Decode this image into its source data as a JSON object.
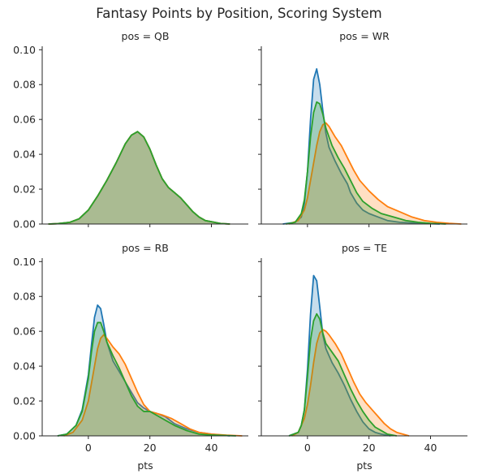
{
  "chart_data": {
    "type": "area",
    "title": "Fantasy Points by Position, Scoring System",
    "xlabel": "pts",
    "ylabel": "",
    "xlim": [
      -15,
      52
    ],
    "ylim": [
      0,
      0.102
    ],
    "xticks": [
      0,
      20,
      40
    ],
    "yticks": [
      0.0,
      0.02,
      0.04,
      0.06,
      0.08,
      0.1
    ],
    "ytick_labels": [
      "0.00",
      "0.02",
      "0.04",
      "0.06",
      "0.08",
      "0.10"
    ],
    "grid": false,
    "legend": "none",
    "series_colors": [
      "#1f77b4",
      "#ff7f0e",
      "#2ca02c"
    ],
    "panels": [
      {
        "title": "pos = QB",
        "series": [
          {
            "color": "#1f77b4",
            "x": [
              -13,
              -10,
              -6,
              -3,
              0,
              3,
              6,
              9,
              12,
              14,
              16,
              18,
              20,
              22,
              24,
              26,
              28,
              30,
              32,
              34,
              36,
              38,
              41,
              43,
              46
            ],
            "y": [
              0.0,
              0.0002,
              0.001,
              0.003,
              0.008,
              0.016,
              0.025,
              0.035,
              0.046,
              0.051,
              0.053,
              0.05,
              0.043,
              0.034,
              0.026,
              0.021,
              0.018,
              0.015,
              0.011,
              0.007,
              0.004,
              0.002,
              0.001,
              0.0003,
              0.0
            ]
          },
          {
            "color": "#ff7f0e",
            "x": [
              -13,
              -10,
              -6,
              -3,
              0,
              3,
              6,
              9,
              12,
              14,
              16,
              18,
              20,
              22,
              24,
              26,
              28,
              30,
              32,
              34,
              36,
              38,
              41,
              43,
              46
            ],
            "y": [
              0.0,
              0.0002,
              0.001,
              0.003,
              0.008,
              0.016,
              0.025,
              0.035,
              0.046,
              0.051,
              0.053,
              0.05,
              0.043,
              0.034,
              0.026,
              0.021,
              0.018,
              0.015,
              0.011,
              0.007,
              0.004,
              0.002,
              0.001,
              0.0003,
              0.0
            ]
          },
          {
            "color": "#2ca02c",
            "x": [
              -13,
              -10,
              -6,
              -3,
              0,
              3,
              6,
              9,
              12,
              14,
              16,
              18,
              20,
              22,
              24,
              26,
              28,
              30,
              32,
              34,
              36,
              38,
              41,
              43,
              46
            ],
            "y": [
              0.0,
              0.0002,
              0.001,
              0.003,
              0.008,
              0.016,
              0.025,
              0.035,
              0.046,
              0.051,
              0.053,
              0.05,
              0.043,
              0.034,
              0.026,
              0.021,
              0.018,
              0.015,
              0.011,
              0.007,
              0.004,
              0.002,
              0.001,
              0.0003,
              0.0
            ]
          }
        ]
      },
      {
        "title": "pos = WR",
        "series": [
          {
            "color": "#1f77b4",
            "x": [
              -8,
              -4,
              -2,
              -1,
              0,
              1,
              2,
              3,
              4,
              5,
              6,
              7,
              9,
              11,
              13,
              14,
              16,
              18,
              20,
              23,
              26,
              30,
              35,
              40,
              43
            ],
            "y": [
              0.0,
              0.001,
              0.004,
              0.012,
              0.03,
              0.06,
              0.083,
              0.089,
              0.08,
              0.065,
              0.052,
              0.044,
              0.036,
              0.029,
              0.023,
              0.018,
              0.012,
              0.008,
              0.006,
              0.004,
              0.002,
              0.001,
              0.0005,
              0.0002,
              0.0
            ]
          },
          {
            "color": "#ff7f0e",
            "x": [
              -6,
              -3,
              -1,
              0,
              2,
              3,
              4,
              5,
              6,
              7,
              9,
              11,
              13,
              15,
              17,
              20,
              23,
              26,
              30,
              34,
              38,
              42,
              46,
              50
            ],
            "y": [
              0.0,
              0.002,
              0.008,
              0.015,
              0.035,
              0.045,
              0.053,
              0.057,
              0.058,
              0.056,
              0.05,
              0.045,
              0.038,
              0.031,
              0.025,
              0.019,
              0.014,
              0.01,
              0.007,
              0.004,
              0.002,
              0.001,
              0.0004,
              0.0
            ]
          },
          {
            "color": "#2ca02c",
            "x": [
              -7,
              -4,
              -2,
              -1,
              0,
              1,
              2,
              3,
              4,
              5,
              6,
              8,
              10,
              12,
              14,
              16,
              18,
              21,
              24,
              28,
              32,
              36,
              40,
              45
            ],
            "y": [
              0.0,
              0.001,
              0.006,
              0.014,
              0.03,
              0.05,
              0.064,
              0.07,
              0.069,
              0.063,
              0.055,
              0.045,
              0.038,
              0.032,
              0.025,
              0.018,
              0.013,
              0.009,
              0.006,
              0.004,
              0.002,
              0.001,
              0.0004,
              0.0
            ]
          }
        ]
      },
      {
        "title": "pos = RB",
        "series": [
          {
            "color": "#1f77b4",
            "x": [
              -10,
              -7,
              -4,
              -2,
              0,
              1,
              2,
              3,
              4,
              5,
              6,
              8,
              10,
              12,
              14,
              16,
              18,
              20,
              22,
              25,
              28,
              32,
              36,
              40,
              46
            ],
            "y": [
              0.0,
              0.001,
              0.006,
              0.015,
              0.035,
              0.052,
              0.068,
              0.075,
              0.073,
              0.064,
              0.054,
              0.043,
              0.037,
              0.031,
              0.025,
              0.019,
              0.016,
              0.014,
              0.013,
              0.011,
              0.007,
              0.004,
              0.002,
              0.001,
              0.0
            ]
          },
          {
            "color": "#ff7f0e",
            "x": [
              -8,
              -5,
              -2,
              0,
              2,
              3,
              4,
              5,
              6,
              8,
              10,
              12,
              14,
              16,
              18,
              20,
              22,
              24,
              27,
              30,
              33,
              36,
              40,
              45,
              50
            ],
            "y": [
              0.0,
              0.002,
              0.009,
              0.02,
              0.04,
              0.05,
              0.056,
              0.058,
              0.056,
              0.051,
              0.047,
              0.041,
              0.033,
              0.025,
              0.018,
              0.014,
              0.013,
              0.012,
              0.01,
              0.007,
              0.004,
              0.002,
              0.001,
              0.0004,
              0.0
            ]
          },
          {
            "color": "#2ca02c",
            "x": [
              -10,
              -7,
              -4,
              -2,
              0,
              1,
              2,
              3,
              4,
              5,
              6,
              8,
              10,
              12,
              14,
              16,
              18,
              20,
              22,
              25,
              28,
              32,
              36,
              40,
              48
            ],
            "y": [
              0.0,
              0.001,
              0.006,
              0.014,
              0.033,
              0.048,
              0.06,
              0.065,
              0.065,
              0.06,
              0.054,
              0.046,
              0.039,
              0.031,
              0.023,
              0.017,
              0.014,
              0.014,
              0.012,
              0.009,
              0.006,
              0.003,
              0.001,
              0.0005,
              0.0
            ]
          }
        ]
      },
      {
        "title": "pos = TE",
        "series": [
          {
            "color": "#1f77b4",
            "x": [
              -6,
              -3,
              -2,
              -1,
              0,
              1,
              2,
              3,
              4,
              5,
              6,
              7,
              8,
              10,
              12,
              14,
              16,
              18,
              20,
              22,
              24,
              27
            ],
            "y": [
              0.0,
              0.002,
              0.006,
              0.015,
              0.038,
              0.07,
              0.092,
              0.089,
              0.074,
              0.058,
              0.05,
              0.046,
              0.042,
              0.036,
              0.029,
              0.021,
              0.014,
              0.008,
              0.004,
              0.002,
              0.001,
              0.0
            ]
          },
          {
            "color": "#ff7f0e",
            "x": [
              -5,
              -3,
              -1,
              0,
              1,
              2,
              3,
              4,
              5,
              6,
              7,
              9,
              11,
              13,
              15,
              17,
              19,
              21,
              23,
              25,
              27,
              29,
              31,
              33
            ],
            "y": [
              0.0,
              0.002,
              0.01,
              0.018,
              0.029,
              0.042,
              0.053,
              0.059,
              0.061,
              0.06,
              0.058,
              0.053,
              0.047,
              0.039,
              0.031,
              0.024,
              0.019,
              0.015,
              0.011,
              0.007,
              0.004,
              0.002,
              0.001,
              0.0
            ]
          },
          {
            "color": "#2ca02c",
            "x": [
              -6,
              -3,
              -2,
              -1,
              0,
              1,
              2,
              3,
              4,
              5,
              6,
              8,
              10,
              12,
              14,
              16,
              18,
              20,
              22,
              24,
              26,
              29
            ],
            "y": [
              0.0,
              0.002,
              0.006,
              0.015,
              0.034,
              0.055,
              0.066,
              0.07,
              0.067,
              0.059,
              0.053,
              0.048,
              0.043,
              0.035,
              0.027,
              0.02,
              0.014,
              0.009,
              0.005,
              0.003,
              0.001,
              0.0
            ]
          }
        ]
      }
    ]
  }
}
